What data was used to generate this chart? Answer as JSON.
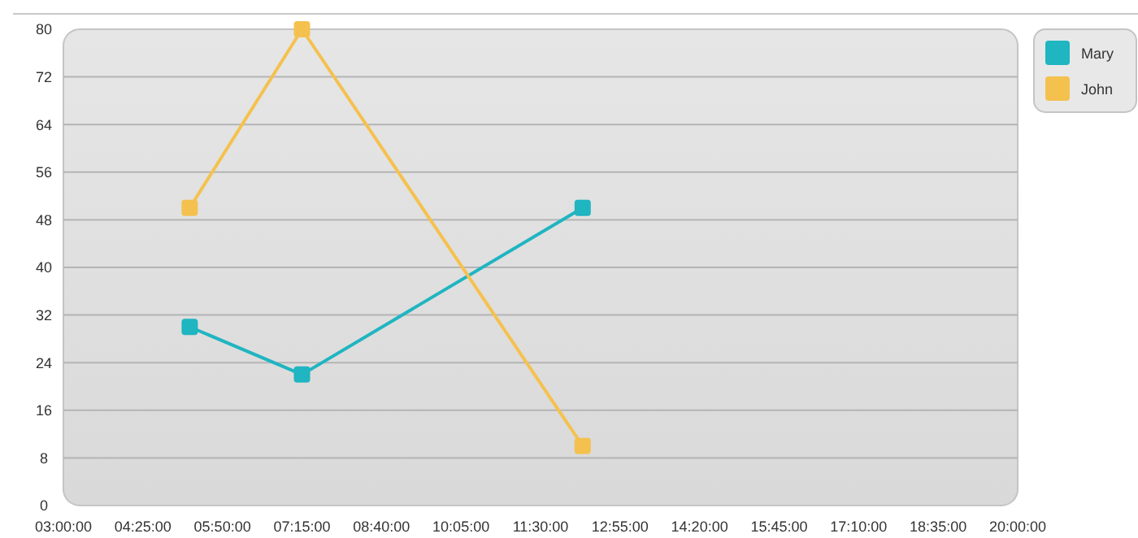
{
  "chart_data": {
    "type": "line",
    "x": [
      5.25,
      7.25,
      12.25
    ],
    "series": [
      {
        "name": "Mary",
        "color": "#1fb5c1",
        "values": [
          30,
          22,
          50
        ]
      },
      {
        "name": "John",
        "color": "#f5c14e",
        "values": [
          50,
          80,
          10
        ]
      }
    ],
    "xlim": [
      3,
      20
    ],
    "xticks": [
      {
        "value": 3,
        "label": "03:00:00"
      },
      {
        "value": 4.416667,
        "label": "04:25:00"
      },
      {
        "value": 5.833333,
        "label": "05:50:00"
      },
      {
        "value": 7.25,
        "label": "07:15:00"
      },
      {
        "value": 8.666667,
        "label": "08:40:00"
      },
      {
        "value": 10.083333,
        "label": "10:05:00"
      },
      {
        "value": 11.5,
        "label": "11:30:00"
      },
      {
        "value": 12.916667,
        "label": "12:55:00"
      },
      {
        "value": 14.333333,
        "label": "14:20:00"
      },
      {
        "value": 15.75,
        "label": "15:45:00"
      },
      {
        "value": 17.166667,
        "label": "17:10:00"
      },
      {
        "value": 18.583333,
        "label": "18:35:00"
      },
      {
        "value": 20,
        "label": "20:00:00"
      }
    ],
    "ylim": [
      0,
      80
    ],
    "yticks": [
      0,
      8,
      16,
      24,
      32,
      40,
      48,
      56,
      64,
      72,
      80
    ],
    "grid": "y",
    "legend": "top right",
    "marker": "square",
    "line_style": "solid"
  }
}
